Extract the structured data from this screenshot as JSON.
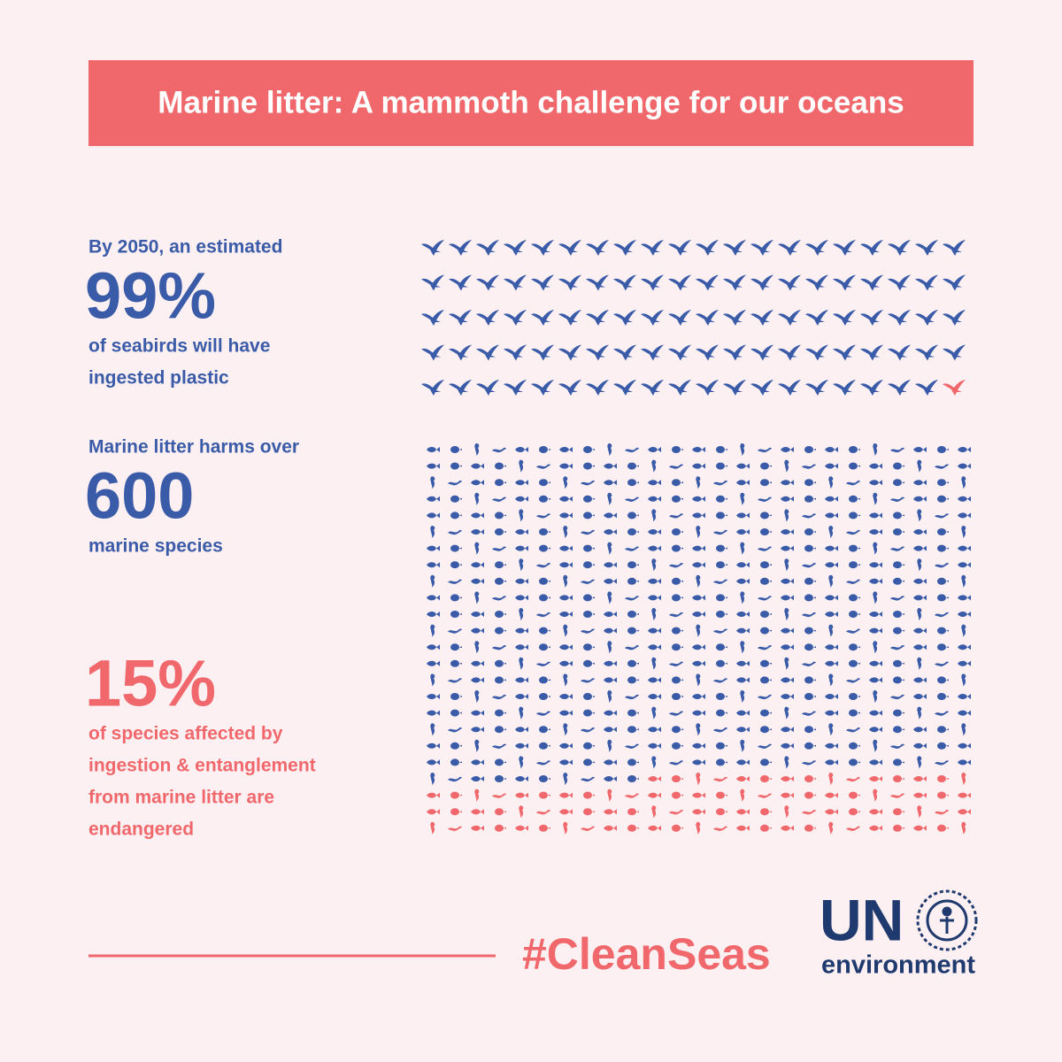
{
  "header": {
    "title": "Marine litter: A mammoth challenge for our oceans"
  },
  "stats": [
    {
      "intro": "By 2050, an estimated",
      "value": {
        "value": 99,
        "label": "99%"
      },
      "text": [
        "of seabirds will have",
        "ingested plastic"
      ]
    },
    {
      "intro": "Marine litter harms over",
      "value": 600,
      "text": [
        "marine species"
      ]
    },
    {
      "value": {
        "value": 15,
        "label": "15%"
      },
      "text": [
        "of species affected by",
        "ingestion & entanglement",
        "from marine litter are",
        "endangered"
      ]
    }
  ],
  "footer": {
    "hashtag": "#CleanSeas",
    "logo": {
      "acronym": "UN",
      "name": "environment"
    }
  }
}
